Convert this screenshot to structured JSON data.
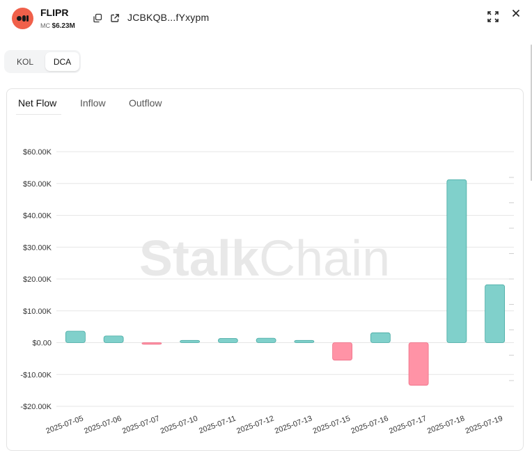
{
  "token": {
    "name": "FLIPR",
    "mc_label": "MC",
    "mc_value": "$6.23M",
    "address": "JCBKQB...fYxypm"
  },
  "icons": {
    "copy": "copy-icon",
    "external": "external-link-icon",
    "expand": "expand-icon",
    "close": "close-icon"
  },
  "mode_toggle": {
    "options": [
      "KOL",
      "DCA"
    ],
    "selected": "DCA"
  },
  "tabs": {
    "items": [
      "Net Flow",
      "Inflow",
      "Outflow"
    ],
    "selected": "Net Flow"
  },
  "watermark": {
    "bold": "Stalk",
    "light": "Chain"
  },
  "colors": {
    "positive": "#80d0cb",
    "positive_stroke": "#45a9a2",
    "negative": "#ff93a6",
    "negative_stroke": "#ee6f86",
    "logo": "#f0604a"
  },
  "chart_data": {
    "type": "bar",
    "categories": [
      "2025-07-05",
      "2025-07-06",
      "2025-07-07",
      "2025-07-10",
      "2025-07-11",
      "2025-07-12",
      "2025-07-13",
      "2025-07-15",
      "2025-07-16",
      "2025-07-17",
      "2025-07-18",
      "2025-07-19"
    ],
    "values": [
      3600,
      2100,
      -500,
      700,
      1300,
      1400,
      700,
      -5500,
      3100,
      -13400,
      51200,
      18200
    ],
    "y_ticks": [
      60000,
      50000,
      40000,
      30000,
      20000,
      10000,
      0,
      -10000,
      -20000
    ],
    "y_tick_labels": [
      "$60.00K",
      "$50.00K",
      "$40.00K",
      "$30.00K",
      "$20.00K",
      "$10.00K",
      "$0.00",
      "-$10.00K",
      "-$20.00K"
    ],
    "ylim": [
      -20000,
      60000
    ],
    "title": "",
    "xlabel": "",
    "ylabel": "",
    "grid": true,
    "legend": "none"
  }
}
